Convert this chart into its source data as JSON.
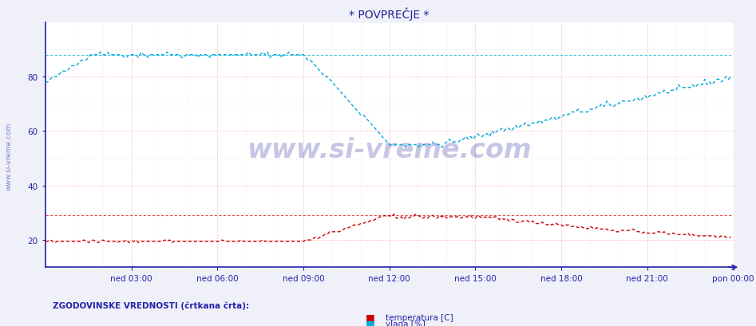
{
  "title": "* POVPREČJE *",
  "bg_color": "#f0f0f8",
  "plot_bg_color": "#ffffff",
  "axis_color": "#2222aa",
  "grid_color": "#ffaaaa",
  "grid_minor_color": "#ddddee",
  "ylim": [
    10,
    100
  ],
  "yticks": [
    20,
    40,
    60,
    80
  ],
  "xtick_labels": [
    "ned 03:00",
    "ned 06:00",
    "ned 09:00",
    "ned 12:00",
    "ned 15:00",
    "ned 18:00",
    "ned 21:00",
    "pon 00:00"
  ],
  "num_points": 288,
  "legend_text_temp": "temperatura [C]",
  "legend_text_vlaga": "vlaga [%]",
  "legend_label": "ZGODOVINSKE VREDNOSTI (črtkana črta):",
  "temp_color": "#cc0000",
  "vlaga_color": "#00aadd",
  "title_color": "#222299",
  "watermark": "www.si-vreme.com",
  "watermark_color": "#222299",
  "left_label": "www.si-vreme.com"
}
